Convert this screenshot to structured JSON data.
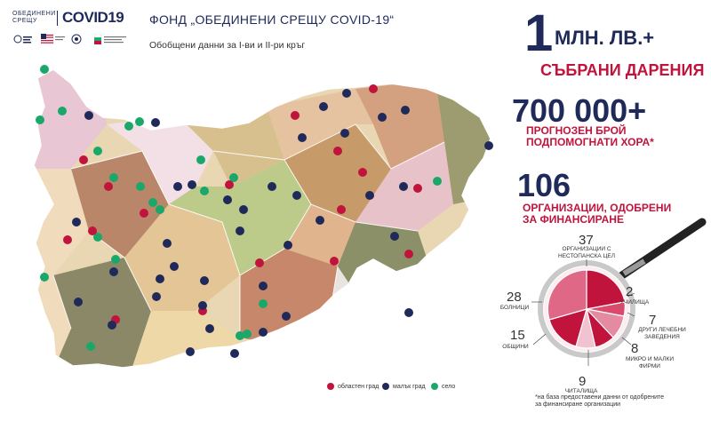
{
  "logo": {
    "line1": "ОБЕДИНЕНИ",
    "line2": "СРЕЩУ",
    "brand": "COVID19"
  },
  "header": {
    "title": "ФОНД „ОБЕДИНЕНИ СРЕЩУ COVID-19“",
    "subtitle": "Обобщени данни за I-ви и II-ри кръг"
  },
  "legend": {
    "items": [
      {
        "label": "областен град",
        "color": "#c0143c"
      },
      {
        "label": "малък град",
        "color": "#1f2a5a"
      },
      {
        "label": "село",
        "color": "#1aa86a"
      }
    ]
  },
  "stats": {
    "donations": {
      "number": "1",
      "unit": "МЛН. ЛВ.+",
      "label": "СЪБРАНИ ДАРЕНИЯ"
    },
    "people": {
      "number": "700 000+",
      "label_line1": "ПРОГНОЗЕН БРОЙ",
      "label_line2": "ПОДПОМОГНАТИ ХОРА*"
    },
    "organizations": {
      "number": "106",
      "label_line1": "ОРГАНИЗАЦИИ, ОДОБРЕНИ",
      "label_line2": "ЗА ФИНАНСИРАНЕ"
    }
  },
  "categories": [
    {
      "value": "37",
      "label_lines": [
        "ОРГАНИЗАЦИИ С",
        "НЕСТОПАНСКА ЦЕЛ"
      ]
    },
    {
      "value": "28",
      "label_lines": [
        "БОЛНИЦИ"
      ]
    },
    {
      "value": "15",
      "label_lines": [
        "ОБЩИНИ"
      ]
    },
    {
      "value": "9",
      "label_lines": [
        "ЧИТАЛИЩА"
      ]
    },
    {
      "value": "8",
      "label_lines": [
        "МИКРО И МАЛКИ",
        "ФИРМИ"
      ]
    },
    {
      "value": "7",
      "label_lines": [
        "ДРУГИ ЛЕЧЕБНИ",
        "ЗАВЕДЕНИЯ"
      ]
    },
    {
      "value": "2",
      "label_lines": [
        "УЧИЛИЩА"
      ]
    }
  ],
  "footnote": {
    "line1": "*на база предоставени данни от одобрените",
    "line2": "за финансиране организации"
  },
  "colors": {
    "navy": "#1f2a5a",
    "crimson": "#c0143c",
    "green": "#1aa86a"
  }
}
